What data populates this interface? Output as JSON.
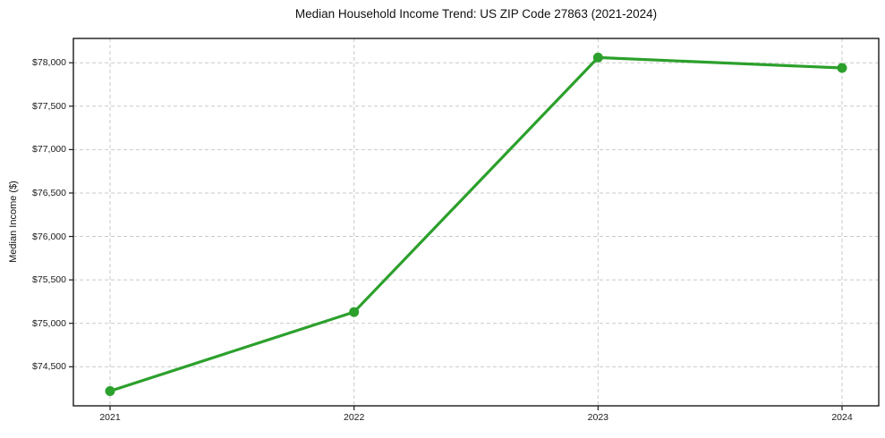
{
  "chart_data": {
    "type": "line",
    "title": "Median Household Income Trend: US ZIP Code 27863 (2021-2024)",
    "xlabel": "",
    "ylabel": "Median Income ($)",
    "categories": [
      "2021",
      "2022",
      "2023",
      "2024"
    ],
    "series": [
      {
        "name": "Median household income",
        "values": [
          74220,
          75130,
          78060,
          77940
        ],
        "color": "#2ca02c",
        "marker": "circle"
      }
    ],
    "ylim": [
      74050,
      78280
    ],
    "yticks": [
      {
        "value": 74500,
        "label": "$74,500"
      },
      {
        "value": 75000,
        "label": "$75,000"
      },
      {
        "value": 75500,
        "label": "$75,500"
      },
      {
        "value": 76000,
        "label": "$76,000"
      },
      {
        "value": 76500,
        "label": "$76,500"
      },
      {
        "value": 77000,
        "label": "$77,000"
      },
      {
        "value": 77500,
        "label": "$77,500"
      },
      {
        "value": 78000,
        "label": "$78,000"
      }
    ],
    "grid": "dashed-both-axes",
    "legend": "none",
    "colors": {
      "line": "#2ca02c",
      "grid": "#c9c9c9",
      "axis": "#1a1a1a",
      "text": "#1a1a1a",
      "background": "#ffffff"
    }
  }
}
